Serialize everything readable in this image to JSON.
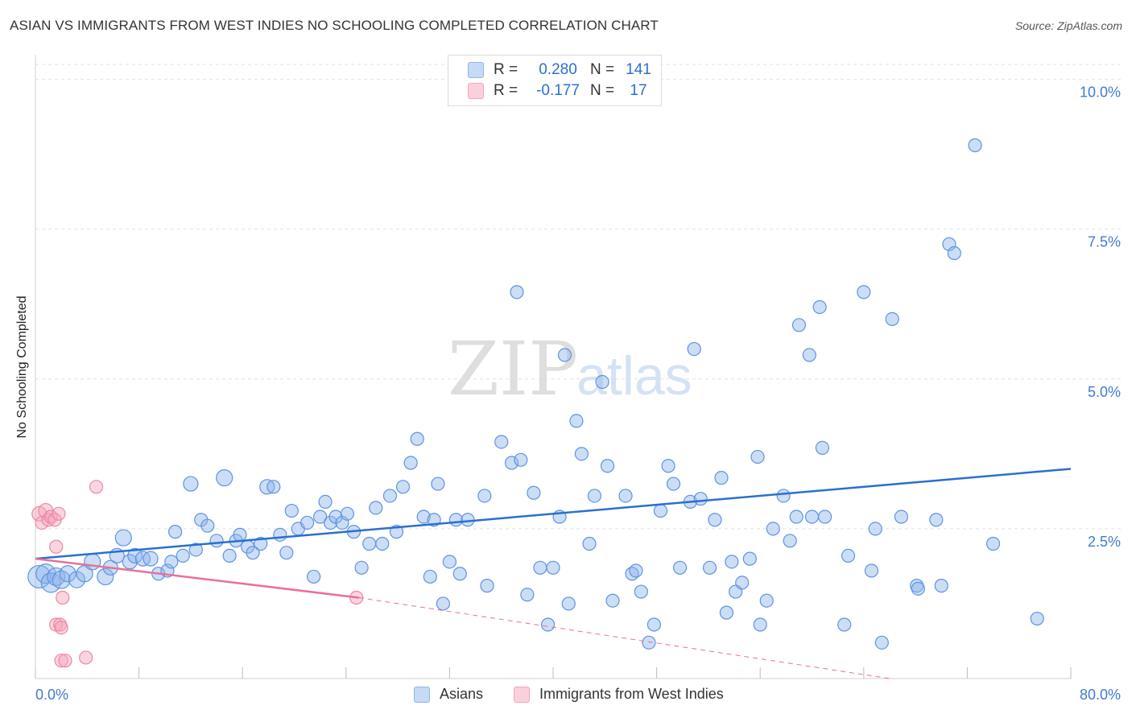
{
  "title": "ASIAN VS IMMIGRANTS FROM WEST INDIES NO SCHOOLING COMPLETED CORRELATION CHART",
  "source": "Source: ZipAtlas.com",
  "watermark": {
    "zip": "ZIP",
    "atlas": "atlas"
  },
  "legend": {
    "rows": [
      {
        "r_label": "R =",
        "r_value": "0.280",
        "n_label": "N =",
        "n_value": "141",
        "color": "#8fb4ec"
      },
      {
        "r_label": "R =",
        "r_value": "-0.177",
        "n_label": "N =",
        "n_value": "17",
        "color": "#f5a3bb"
      }
    ]
  },
  "bottom_legend": [
    {
      "label": "Asians",
      "color": "#8fb4ec"
    },
    {
      "label": "Immigrants from West Indies",
      "color": "#f5a3bb"
    }
  ],
  "chart_data": {
    "type": "scatter",
    "title": "ASIAN VS IMMIGRANTS FROM WEST INDIES NO SCHOOLING COMPLETED CORRELATION CHART",
    "xlabel": "",
    "ylabel": "No Schooling Completed",
    "xlim": [
      0,
      80
    ],
    "ylim": [
      0,
      10.25
    ],
    "x_tick_labels": [
      "0.0%",
      "80.0%"
    ],
    "y_ticks": [
      2.5,
      5.0,
      7.5,
      10.0
    ],
    "y_tick_labels": [
      "2.5%",
      "5.0%",
      "7.5%",
      "10.0%"
    ],
    "grid": true,
    "legend_position": "top-center",
    "series": [
      {
        "name": "Asians",
        "color": "#8fb4ec",
        "stroke": "#5e94e0",
        "trend": {
          "x": [
            0,
            80
          ],
          "y": [
            2.0,
            3.5
          ],
          "color": "#2a6fd1"
        },
        "points": [
          [
            0.3,
            1.7,
            14
          ],
          [
            0.8,
            1.75,
            12
          ],
          [
            1.2,
            1.6,
            12
          ],
          [
            1.6,
            1.7,
            11
          ],
          [
            2.0,
            1.65,
            11
          ],
          [
            2.5,
            1.75,
            10
          ],
          [
            3.2,
            1.65,
            10
          ],
          [
            3.8,
            1.75,
            10
          ],
          [
            4.4,
            1.95,
            10
          ],
          [
            5.4,
            1.7,
            10
          ],
          [
            5.8,
            1.85,
            9
          ],
          [
            6.3,
            2.05,
            9
          ],
          [
            6.8,
            2.35,
            10
          ],
          [
            7.3,
            1.95,
            9
          ],
          [
            7.7,
            2.05,
            9
          ],
          [
            8.3,
            2.0,
            9
          ],
          [
            8.9,
            2.0,
            9
          ],
          [
            9.5,
            1.75,
            8
          ],
          [
            10.2,
            1.8,
            8
          ],
          [
            10.5,
            1.95,
            8
          ],
          [
            10.8,
            2.45,
            8
          ],
          [
            11.4,
            2.05,
            8
          ],
          [
            12.0,
            3.25,
            9
          ],
          [
            12.4,
            2.15,
            8
          ],
          [
            12.8,
            2.65,
            8
          ],
          [
            13.3,
            2.55,
            8
          ],
          [
            14.0,
            2.3,
            8
          ],
          [
            14.6,
            3.35,
            10
          ],
          [
            15.0,
            2.05,
            8
          ],
          [
            15.5,
            2.3,
            8
          ],
          [
            15.8,
            2.4,
            8
          ],
          [
            16.4,
            2.2,
            8
          ],
          [
            16.8,
            2.1,
            8
          ],
          [
            17.4,
            2.25,
            8
          ],
          [
            17.9,
            3.2,
            9
          ],
          [
            18.4,
            3.2,
            8
          ],
          [
            18.9,
            2.4,
            8
          ],
          [
            19.4,
            2.1,
            8
          ],
          [
            19.8,
            2.8,
            8
          ],
          [
            20.3,
            2.5,
            8
          ],
          [
            21.0,
            2.6,
            8
          ],
          [
            21.5,
            1.7,
            8
          ],
          [
            22.0,
            2.7,
            8
          ],
          [
            22.4,
            2.95,
            8
          ],
          [
            22.8,
            2.6,
            8
          ],
          [
            23.2,
            2.7,
            8
          ],
          [
            23.7,
            2.6,
            8
          ],
          [
            24.1,
            2.75,
            8
          ],
          [
            24.6,
            2.45,
            8
          ],
          [
            25.2,
            1.85,
            8
          ],
          [
            25.8,
            2.25,
            8
          ],
          [
            26.3,
            2.85,
            8
          ],
          [
            26.8,
            2.25,
            8
          ],
          [
            27.4,
            3.05,
            8
          ],
          [
            27.9,
            2.45,
            8
          ],
          [
            28.4,
            3.2,
            8
          ],
          [
            29.0,
            3.6,
            8
          ],
          [
            29.5,
            4.0,
            8
          ],
          [
            30.0,
            2.7,
            8
          ],
          [
            30.5,
            1.7,
            8
          ],
          [
            30.8,
            2.65,
            8
          ],
          [
            31.1,
            3.25,
            8
          ],
          [
            31.5,
            1.25,
            8
          ],
          [
            32.0,
            1.95,
            8
          ],
          [
            32.5,
            2.65,
            8
          ],
          [
            32.8,
            1.75,
            8
          ],
          [
            33.4,
            2.65,
            8
          ],
          [
            34.7,
            3.05,
            8
          ],
          [
            34.9,
            1.55,
            8
          ],
          [
            36.0,
            3.95,
            8
          ],
          [
            36.8,
            3.6,
            8
          ],
          [
            37.2,
            6.45,
            8
          ],
          [
            37.5,
            3.65,
            8
          ],
          [
            38.0,
            1.4,
            8
          ],
          [
            38.5,
            3.1,
            8
          ],
          [
            39.0,
            1.85,
            8
          ],
          [
            39.6,
            0.9,
            8
          ],
          [
            40.0,
            1.85,
            8
          ],
          [
            40.5,
            2.7,
            8
          ],
          [
            40.9,
            5.4,
            8
          ],
          [
            41.2,
            1.25,
            8
          ],
          [
            41.8,
            4.3,
            8
          ],
          [
            42.2,
            3.75,
            8
          ],
          [
            42.8,
            2.25,
            8
          ],
          [
            43.2,
            3.05,
            8
          ],
          [
            43.8,
            4.95,
            8
          ],
          [
            44.2,
            3.55,
            8
          ],
          [
            44.6,
            1.3,
            8
          ],
          [
            45.6,
            3.05,
            8
          ],
          [
            46.1,
            1.75,
            8
          ],
          [
            46.4,
            1.8,
            8
          ],
          [
            46.8,
            1.45,
            8
          ],
          [
            47.4,
            0.6,
            8
          ],
          [
            47.8,
            0.9,
            8
          ],
          [
            48.3,
            2.8,
            8
          ],
          [
            48.9,
            3.55,
            8
          ],
          [
            49.3,
            3.25,
            8
          ],
          [
            49.8,
            1.85,
            8
          ],
          [
            50.6,
            2.95,
            8
          ],
          [
            50.9,
            5.5,
            8
          ],
          [
            51.4,
            3.0,
            8
          ],
          [
            52.1,
            1.85,
            8
          ],
          [
            52.5,
            2.65,
            8
          ],
          [
            53.0,
            3.35,
            8
          ],
          [
            53.4,
            1.1,
            8
          ],
          [
            53.8,
            1.95,
            8
          ],
          [
            54.1,
            1.45,
            8
          ],
          [
            54.6,
            1.6,
            8
          ],
          [
            55.2,
            2.0,
            8
          ],
          [
            55.8,
            3.7,
            8
          ],
          [
            56.0,
            0.9,
            8
          ],
          [
            56.5,
            1.3,
            8
          ],
          [
            57.0,
            2.5,
            8
          ],
          [
            57.8,
            3.05,
            8
          ],
          [
            58.3,
            2.3,
            8
          ],
          [
            58.8,
            2.7,
            8
          ],
          [
            59.0,
            5.9,
            8
          ],
          [
            59.8,
            5.4,
            8
          ],
          [
            60.0,
            2.7,
            8
          ],
          [
            60.6,
            6.2,
            8
          ],
          [
            60.8,
            3.85,
            8
          ],
          [
            61.0,
            2.7,
            8
          ],
          [
            62.5,
            0.9,
            8
          ],
          [
            62.8,
            2.05,
            8
          ],
          [
            64.0,
            6.45,
            8
          ],
          [
            64.6,
            1.8,
            8
          ],
          [
            64.9,
            2.5,
            8
          ],
          [
            65.4,
            0.6,
            8
          ],
          [
            66.2,
            6.0,
            8
          ],
          [
            66.9,
            2.7,
            8
          ],
          [
            68.1,
            1.55,
            8
          ],
          [
            68.2,
            1.5,
            8
          ],
          [
            69.6,
            2.65,
            8
          ],
          [
            70.0,
            1.55,
            8
          ],
          [
            70.6,
            7.25,
            8
          ],
          [
            71.0,
            7.1,
            8
          ],
          [
            72.6,
            8.9,
            8
          ],
          [
            74.0,
            2.25,
            8
          ],
          [
            77.4,
            1.0,
            8
          ]
        ]
      },
      {
        "name": "Immigrants from West Indies",
        "color": "#f5a3bb",
        "stroke": "#ef86a5",
        "trend": {
          "x": [
            0,
            25
          ],
          "y": [
            2.0,
            1.35
          ],
          "color": "#e8709a",
          "dash_to": [
            66,
            0.0
          ]
        },
        "points": [
          [
            0.3,
            2.75,
            9
          ],
          [
            0.5,
            2.6,
            8
          ],
          [
            0.8,
            2.8,
            9
          ],
          [
            1.0,
            2.65,
            8
          ],
          [
            1.2,
            2.7,
            8
          ],
          [
            1.5,
            2.65,
            8
          ],
          [
            1.6,
            0.9,
            8
          ],
          [
            1.8,
            2.75,
            8
          ],
          [
            1.9,
            0.9,
            8
          ],
          [
            1.6,
            2.2,
            8
          ],
          [
            2.0,
            0.85,
            8
          ],
          [
            2.0,
            0.3,
            8
          ],
          [
            2.1,
            1.35,
            8
          ],
          [
            2.3,
            0.3,
            8
          ],
          [
            3.9,
            0.35,
            8
          ],
          [
            4.7,
            3.2,
            8
          ],
          [
            24.8,
            1.35,
            8
          ]
        ]
      }
    ]
  }
}
